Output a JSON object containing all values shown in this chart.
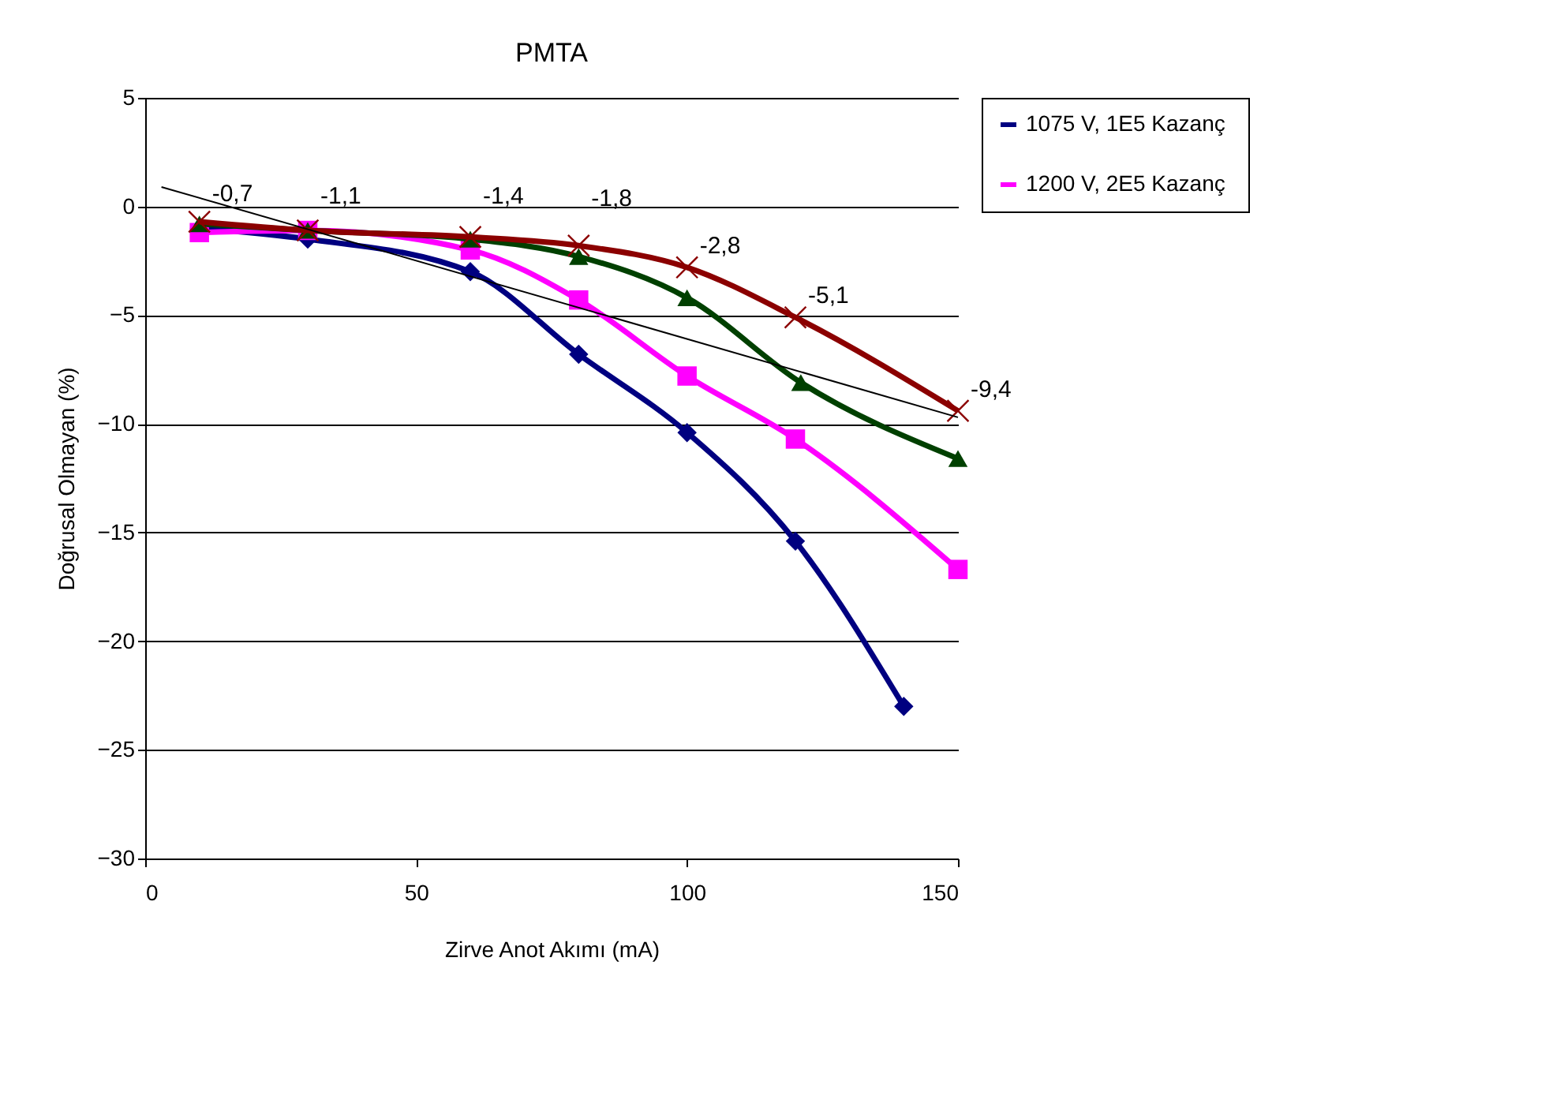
{
  "chart_data": {
    "type": "line",
    "title": "PMTA",
    "xlabel": "Zirve Anot Akımı (mA)",
    "ylabel": "Doğrusal Olmayan (%)",
    "x": [
      10,
      30,
      60,
      80,
      100,
      120,
      150
    ],
    "series": [
      {
        "name": "1075 V, 1E5 Kazanç",
        "color": "#000080",
        "marker": "diamond",
        "x": [
          10,
          30,
          60,
          80,
          100,
          120,
          140
        ],
        "values": [
          -1.0,
          -1.5,
          -3.0,
          -6.8,
          -10.4,
          -15.4,
          -23.0
        ]
      },
      {
        "name": "1200 V, 2E5  Kazanç",
        "color": "#ff00ff",
        "marker": "square",
        "values": [
          -1.2,
          -1.1,
          -2.0,
          -4.3,
          -7.8,
          -10.7,
          -16.7
        ]
      },
      {
        "color": "#004000",
        "marker": "triangle",
        "x": [
          10,
          30,
          60,
          80,
          100,
          121,
          150
        ],
        "values": [
          -0.8,
          -1.1,
          -1.5,
          -2.3,
          -4.2,
          -8.1,
          -11.6
        ]
      },
      {
        "color": "#8b0000",
        "marker": "cross",
        "values": [
          -0.7,
          -1.1,
          -1.4,
          -1.8,
          -2.8,
          -5.1,
          -9.4
        ],
        "value_labels": [
          "-0,7",
          "-1,1",
          "-1,4",
          "-1,8",
          "-2,8",
          "-5,1",
          "-9,4"
        ]
      },
      {
        "type": "line",
        "color": "#000000",
        "marker": "none",
        "x": [
          3,
          150
        ],
        "values": [
          0.9,
          -9.7
        ]
      }
    ],
    "xlim": [
      0,
      150
    ],
    "xticks": [
      0,
      50,
      100,
      150
    ],
    "ylim": [
      -30,
      5
    ],
    "yticks": [
      -30,
      -25,
      -20,
      -15,
      -10,
      -5,
      0,
      5
    ],
    "grid": "y",
    "legend": "top right"
  }
}
